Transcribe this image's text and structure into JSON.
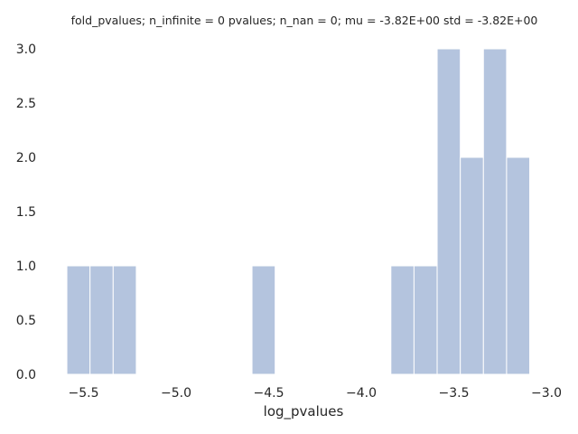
{
  "chart_data": {
    "type": "bar",
    "title": "fold_pvalues; n_infinite = 0 pvalues; n_nan = 0; mu = -3.82E+00 std = -3.82E+00",
    "xlabel": "log_pvalues",
    "ylabel": "",
    "xlim": [
      -5.6,
      -3.0
    ],
    "ylim": [
      0,
      3.0
    ],
    "grid": false,
    "bar_color": "#b4c4de",
    "bin_edges": [
      -5.59,
      -5.465,
      -5.34,
      -5.215,
      -5.09,
      -4.965,
      -4.84,
      -4.715,
      -4.59,
      -4.465,
      -4.34,
      -4.215,
      -4.09,
      -3.965,
      -3.84,
      -3.715,
      -3.59,
      -3.465,
      -3.34,
      -3.215,
      -3.09,
      -2.965
    ],
    "counts": [
      1,
      1,
      1,
      0,
      0,
      0,
      0,
      0,
      1,
      0,
      0,
      0,
      0,
      0,
      1,
      1,
      3,
      2,
      3,
      2,
      0
    ],
    "x_ticks": [
      {
        "value": -5.5,
        "label": "−5.5"
      },
      {
        "value": -5.0,
        "label": "−5.0"
      },
      {
        "value": -4.5,
        "label": "−4.5"
      },
      {
        "value": -4.0,
        "label": "−4.0"
      },
      {
        "value": -3.5,
        "label": "−3.5"
      },
      {
        "value": -3.0,
        "label": "−3.0"
      }
    ],
    "y_ticks": [
      {
        "value": 0.0,
        "label": "0.0"
      },
      {
        "value": 0.5,
        "label": "0.5"
      },
      {
        "value": 1.0,
        "label": "1.0"
      },
      {
        "value": 1.5,
        "label": "1.5"
      },
      {
        "value": 2.0,
        "label": "2.0"
      },
      {
        "value": 2.5,
        "label": "2.5"
      },
      {
        "value": 3.0,
        "label": "3.0"
      }
    ]
  }
}
